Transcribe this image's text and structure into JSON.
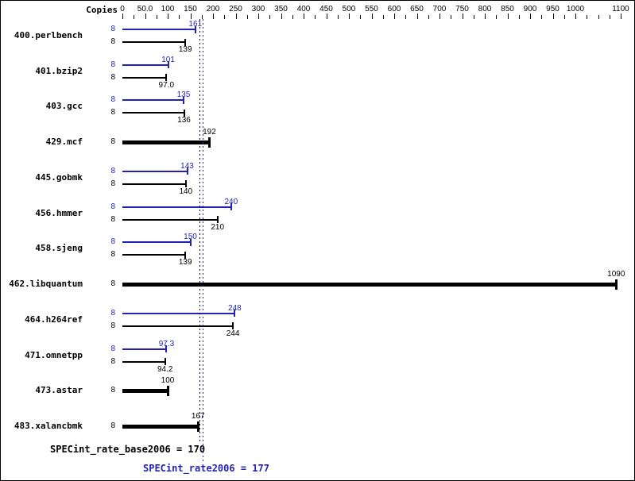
{
  "chart_data": {
    "type": "bar",
    "orientation": "horizontal",
    "title": "",
    "copies_header": "Copies",
    "colors": {
      "peak": "#2222bb",
      "base": "#000000"
    },
    "axis": {
      "position": "top",
      "min": 0,
      "max": 1130,
      "minor_step": 25,
      "minor_max": 1100,
      "ticks": [
        {
          "value": 0,
          "label": "0"
        },
        {
          "value": 50,
          "label": "50.0"
        },
        {
          "value": 100,
          "label": "100"
        },
        {
          "value": 150,
          "label": "150"
        },
        {
          "value": 200,
          "label": "200"
        },
        {
          "value": 250,
          "label": "250"
        },
        {
          "value": 300,
          "label": "300"
        },
        {
          "value": 350,
          "label": "350"
        },
        {
          "value": 400,
          "label": "400"
        },
        {
          "value": 450,
          "label": "450"
        },
        {
          "value": 500,
          "label": "500"
        },
        {
          "value": 550,
          "label": "550"
        },
        {
          "value": 600,
          "label": "600"
        },
        {
          "value": 650,
          "label": "650"
        },
        {
          "value": 700,
          "label": "700"
        },
        {
          "value": 750,
          "label": "750"
        },
        {
          "value": 800,
          "label": "800"
        },
        {
          "value": 850,
          "label": "850"
        },
        {
          "value": 900,
          "label": "900"
        },
        {
          "value": 950,
          "label": "950"
        },
        {
          "value": 1000,
          "label": "1000"
        },
        {
          "value": 1100,
          "label": "1100"
        }
      ]
    },
    "rows": [
      {
        "name": "400.perlbench",
        "bars": [
          {
            "type": "peak",
            "copies": "8",
            "value": 161,
            "label": "161"
          },
          {
            "type": "base",
            "copies": "8",
            "value": 139,
            "label": "139"
          }
        ]
      },
      {
        "name": "401.bzip2",
        "bars": [
          {
            "type": "peak",
            "copies": "8",
            "value": 101,
            "label": "101"
          },
          {
            "type": "base",
            "copies": "8",
            "value": 97.0,
            "label": "97.0"
          }
        ]
      },
      {
        "name": "403.gcc",
        "bars": [
          {
            "type": "peak",
            "copies": "8",
            "value": 135,
            "label": "135"
          },
          {
            "type": "base",
            "copies": "8",
            "value": 136,
            "label": "136"
          }
        ]
      },
      {
        "name": "429.mcf",
        "bars": [
          {
            "type": "both",
            "copies": "8",
            "value": 192,
            "label": "192"
          }
        ]
      },
      {
        "name": "445.gobmk",
        "bars": [
          {
            "type": "peak",
            "copies": "8",
            "value": 143,
            "label": "143"
          },
          {
            "type": "base",
            "copies": "8",
            "value": 140,
            "label": "140"
          }
        ]
      },
      {
        "name": "456.hmmer",
        "bars": [
          {
            "type": "peak",
            "copies": "8",
            "value": 240,
            "label": "240"
          },
          {
            "type": "base",
            "copies": "8",
            "value": 210,
            "label": "210"
          }
        ]
      },
      {
        "name": "458.sjeng",
        "bars": [
          {
            "type": "peak",
            "copies": "8",
            "value": 150,
            "label": "150"
          },
          {
            "type": "base",
            "copies": "8",
            "value": 139,
            "label": "139"
          }
        ]
      },
      {
        "name": "462.libquantum",
        "bars": [
          {
            "type": "both",
            "copies": "8",
            "value": 1090,
            "label": "1090"
          }
        ]
      },
      {
        "name": "464.h264ref",
        "bars": [
          {
            "type": "peak",
            "copies": "8",
            "value": 248,
            "label": "248"
          },
          {
            "type": "base",
            "copies": "8",
            "value": 244,
            "label": "244"
          }
        ]
      },
      {
        "name": "471.omnetpp",
        "bars": [
          {
            "type": "peak",
            "copies": "8",
            "value": 97.3,
            "label": "97.3"
          },
          {
            "type": "base",
            "copies": "8",
            "value": 94.2,
            "label": "94.2"
          }
        ]
      },
      {
        "name": "473.astar",
        "bars": [
          {
            "type": "both",
            "copies": "8",
            "value": 100,
            "label": "100"
          }
        ]
      },
      {
        "name": "483.xalancbmk",
        "bars": [
          {
            "type": "both",
            "copies": "8",
            "value": 167,
            "label": "167"
          }
        ]
      }
    ],
    "means": {
      "base": {
        "text": "SPECint_rate_base2006 = 170",
        "value": 170
      },
      "peak": {
        "text": "SPECint_rate2006 = 177",
        "value": 177
      }
    }
  }
}
